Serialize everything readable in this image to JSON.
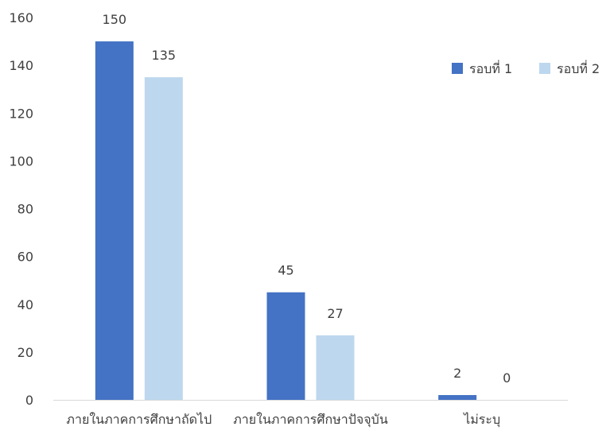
{
  "chart_data": {
    "type": "bar",
    "categories": [
      "ภายในภาคการศึกษาถัดไป",
      "ภายในภาคการศึกษาปัจจุบัน",
      "ไม่ระบุ"
    ],
    "series": [
      {
        "name": "รอบที่ 1",
        "values": [
          150,
          45,
          2
        ],
        "color": "#4472C4"
      },
      {
        "name": "รอบที่ 2",
        "values": [
          135,
          27,
          0
        ],
        "color": "#BDD7EE"
      }
    ],
    "ylim": [
      0,
      160
    ],
    "yticks": [
      "0",
      "20",
      "40",
      "60",
      "80",
      "100",
      "120",
      "140",
      "160"
    ],
    "legend": "top-right",
    "grid": false,
    "axis_color": "#d9d9d9"
  }
}
